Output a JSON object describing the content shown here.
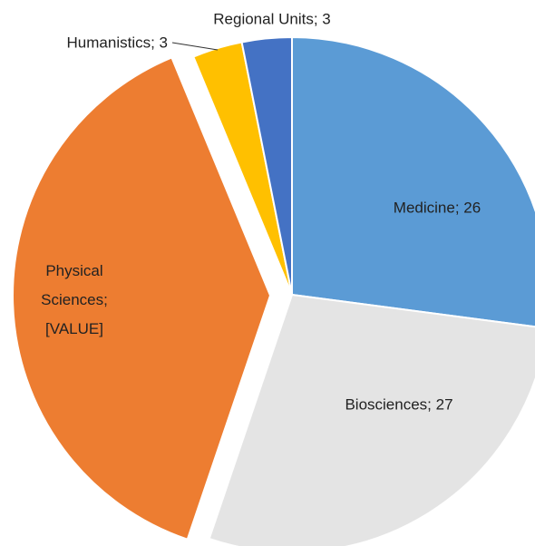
{
  "chart_data": {
    "type": "pie",
    "labels": [
      "Medicine; 26",
      "Biosciences; 27",
      "Physical Sciences; [VALUE]",
      "Humanistics; 3",
      "Regional Units; 3"
    ],
    "values": [
      26,
      27,
      37,
      3,
      3
    ],
    "colors": [
      "#5b9bd5",
      "#e4e4e4",
      "#ed7d31",
      "#ffc000",
      "#4472c4"
    ],
    "exploded": [
      2
    ]
  }
}
